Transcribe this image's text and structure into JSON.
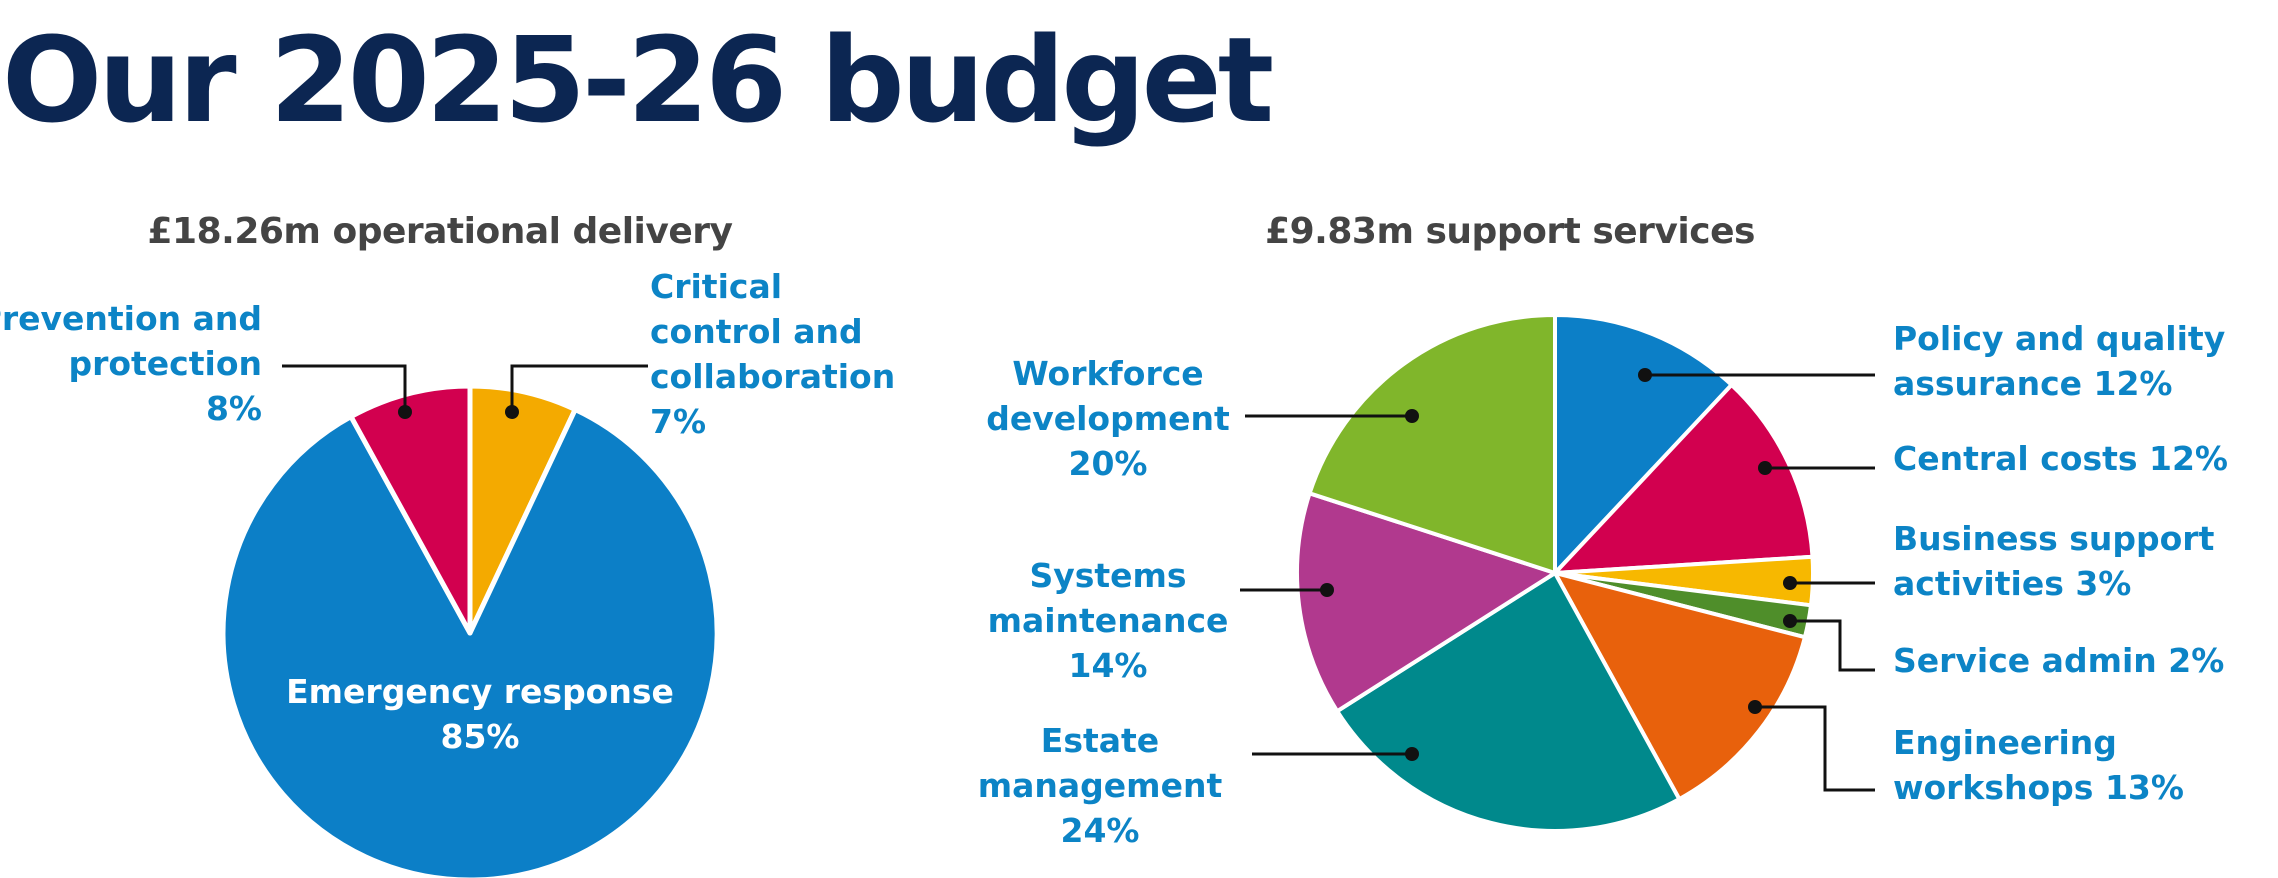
{
  "title": "Our 2025-26 budget",
  "colors": {
    "title": "#0c2652",
    "subtitle": "#444444",
    "label": "#0c84c6",
    "inner_label": "#ffffff",
    "leader": "#111111"
  },
  "chart_data": [
    {
      "type": "pie",
      "title": "£18.26m operational delivery",
      "slices": [
        {
          "name": "Critical control and collaboration",
          "value": 7,
          "color": "#f4aa00",
          "label_lines": [
            "Critical",
            "control and",
            "collaboration",
            "7%"
          ]
        },
        {
          "name": "Emergency response",
          "value": 85,
          "color": "#0c7fc7",
          "label_lines": [
            "Emergency response",
            "85%"
          ]
        },
        {
          "name": "Prevention and protection",
          "value": 8,
          "color": "#d2004f",
          "label_lines": [
            "Prevention and",
            "protection",
            "8%"
          ]
        }
      ]
    },
    {
      "type": "pie",
      "title": "£9.83m support services",
      "slices": [
        {
          "name": "Policy and quality assurance",
          "value": 12,
          "color": "#0c7fc7",
          "label_lines": [
            "Policy and quality",
            "assurance 12%"
          ]
        },
        {
          "name": "Central costs",
          "value": 12,
          "color": "#d2004f",
          "label_lines": [
            "Central costs 12%"
          ]
        },
        {
          "name": "Business support activities",
          "value": 3,
          "color": "#f7b800",
          "label_lines": [
            "Business support",
            "activities 3%"
          ]
        },
        {
          "name": "Service admin",
          "value": 2,
          "color": "#4f8e2a",
          "label_lines": [
            "Service admin 2%"
          ]
        },
        {
          "name": "Engineering workshops",
          "value": 13,
          "color": "#e8610c",
          "label_lines": [
            "Engineering",
            "workshops 13%"
          ]
        },
        {
          "name": "Estate management",
          "value": 24,
          "color": "#00898c",
          "label_lines": [
            "Estate",
            "management",
            "24%"
          ]
        },
        {
          "name": "Systems maintenance",
          "value": 14,
          "color": "#b1398e",
          "label_lines": [
            "Systems",
            "maintenance",
            "14%"
          ]
        },
        {
          "name": "Workforce development",
          "value": 20,
          "color": "#80b62b",
          "label_lines": [
            "Workforce",
            "development",
            "20%"
          ]
        }
      ]
    }
  ]
}
